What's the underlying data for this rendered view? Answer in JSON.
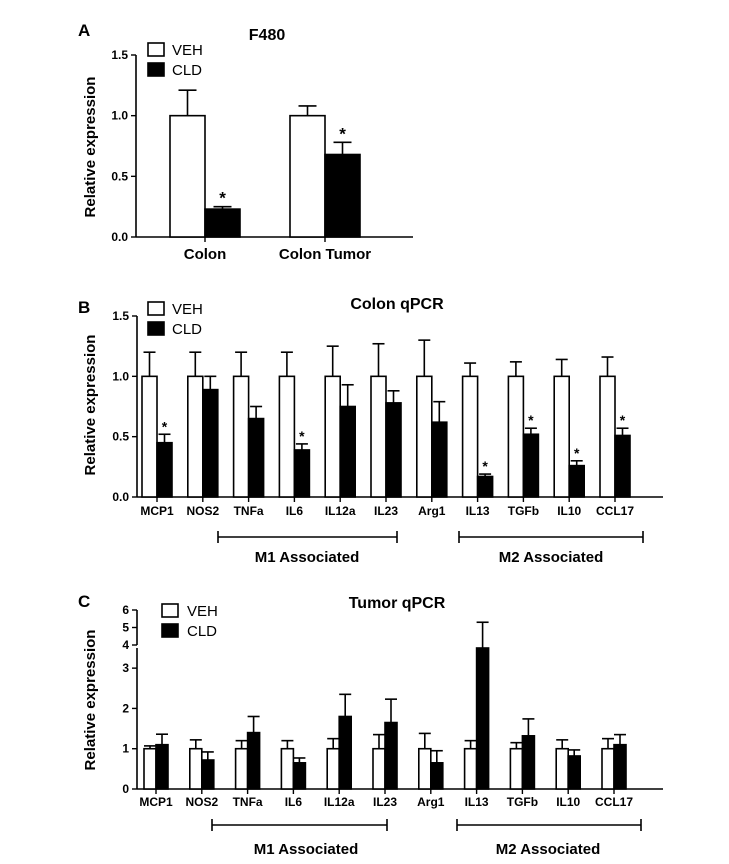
{
  "colors": {
    "veh": "#ffffff",
    "cld": "#000000",
    "stroke": "#000000"
  },
  "legend": {
    "veh": "VEH",
    "cld": "CLD"
  },
  "groups": {
    "m1": "M1 Associated",
    "m2": "M2  Associated"
  },
  "chart_data": [
    {
      "panel": "A",
      "type": "bar",
      "title": "F480",
      "ylabel": "Relative expression",
      "ylim": [
        0,
        1.5
      ],
      "yticks": [
        "0.0",
        "0.5",
        "1.0",
        "1.5"
      ],
      "categories": [
        "Colon",
        "Colon Tumor"
      ],
      "series": [
        {
          "name": "VEH",
          "values": [
            1.0,
            1.0
          ],
          "errors": [
            0.21,
            0.08
          ]
        },
        {
          "name": "CLD",
          "values": [
            0.23,
            0.68
          ],
          "errors": [
            0.02,
            0.1
          ]
        }
      ],
      "significance": [
        "*",
        "*"
      ],
      "legend_position": "top-left"
    },
    {
      "panel": "B",
      "type": "bar",
      "title": "Colon qPCR",
      "ylabel": "Relative expression",
      "ylim": [
        0,
        1.5
      ],
      "yticks": [
        "0.0",
        "0.5",
        "1.0",
        "1.5"
      ],
      "categories": [
        "MCP1",
        "NOS2",
        "TNFa",
        "IL6",
        "IL12a",
        "IL23",
        "Arg1",
        "IL13",
        "TGFb",
        "IL10",
        "CCL17"
      ],
      "series": [
        {
          "name": "VEH",
          "values": [
            1,
            1,
            1,
            1,
            1,
            1,
            1,
            1,
            1,
            1,
            1
          ],
          "errors": [
            0.2,
            0.2,
            0.2,
            0.2,
            0.25,
            0.27,
            0.3,
            0.11,
            0.12,
            0.14,
            0.16
          ]
        },
        {
          "name": "CLD",
          "values": [
            0.45,
            0.89,
            0.65,
            0.39,
            0.75,
            0.78,
            0.62,
            0.17,
            0.52,
            0.26,
            0.51
          ],
          "errors": [
            0.07,
            0.11,
            0.1,
            0.05,
            0.18,
            0.1,
            0.17,
            0.02,
            0.05,
            0.04,
            0.06
          ]
        }
      ],
      "significance": [
        "*",
        "",
        "",
        "*",
        "",
        "",
        "",
        "*",
        "*",
        "*",
        "*"
      ],
      "legend_position": "top-left"
    },
    {
      "panel": "C",
      "type": "bar",
      "title": "Tumor qPCR",
      "ylabel": "Relative expression",
      "ylim": [
        0,
        6
      ],
      "axis_break": [
        3.5,
        4
      ],
      "yticks": [
        "0",
        "1",
        "2",
        "3",
        "4",
        "5",
        "6"
      ],
      "categories": [
        "MCP1",
        "NOS2",
        "TNFa",
        "IL6",
        "IL12a",
        "IL23",
        "Arg1",
        "IL13",
        "TGFb",
        "IL10",
        "CCL17"
      ],
      "series": [
        {
          "name": "VEH",
          "values": [
            1,
            1,
            1,
            1,
            1,
            1,
            1,
            1,
            1,
            1,
            1
          ],
          "errors": [
            0.07,
            0.22,
            0.2,
            0.2,
            0.25,
            0.35,
            0.38,
            0.2,
            0.15,
            0.22,
            0.25
          ]
        },
        {
          "name": "CLD",
          "values": [
            1.1,
            0.72,
            1.4,
            0.65,
            1.8,
            1.65,
            0.65,
            3.5,
            1.32,
            0.82,
            1.1
          ],
          "errors": [
            0.26,
            0.2,
            0.4,
            0.12,
            0.55,
            0.58,
            0.3,
            1.8,
            0.42,
            0.15,
            0.25
          ]
        }
      ],
      "significance": [
        "",
        "",
        "",
        "",
        "",
        "",
        "",
        "",
        "",
        "",
        ""
      ],
      "legend_position": "top-left"
    }
  ]
}
